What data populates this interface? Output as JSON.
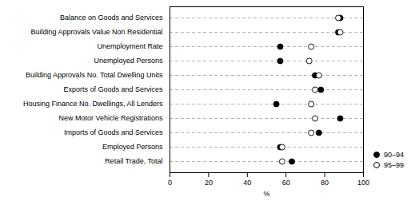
{
  "chart_data": {
    "type": "dot",
    "categories": [
      "Balance on Goods and Services",
      "Building Approvals Value Non Residential",
      "Unemployment Rate",
      "Unemployed Persons",
      "Building Approvals No. Total Dwelling Units",
      "Exports of Goods and Services",
      "Housing Finance No. Dwellings, All Lenders",
      "New Motor Vehicle Registrations",
      "Imports of Goods and Services",
      "Employed Persons",
      "Retail Trade, Total"
    ],
    "series": [
      {
        "name": "90–94",
        "color": "#000000",
        "marker": "circle",
        "values": [
          88,
          87,
          57,
          57,
          75,
          78,
          55,
          88,
          77,
          57,
          63
        ]
      },
      {
        "name": "95–99",
        "color": "#ffffff",
        "marker": "circle",
        "values": [
          87,
          88,
          73,
          72,
          77,
          75,
          73,
          75,
          73,
          58,
          58
        ]
      }
    ],
    "xlabel": "%",
    "xlim": [
      0,
      100
    ],
    "xticks": [
      0,
      20,
      40,
      60,
      80,
      100
    ],
    "grid": true,
    "legend": "lower right"
  }
}
